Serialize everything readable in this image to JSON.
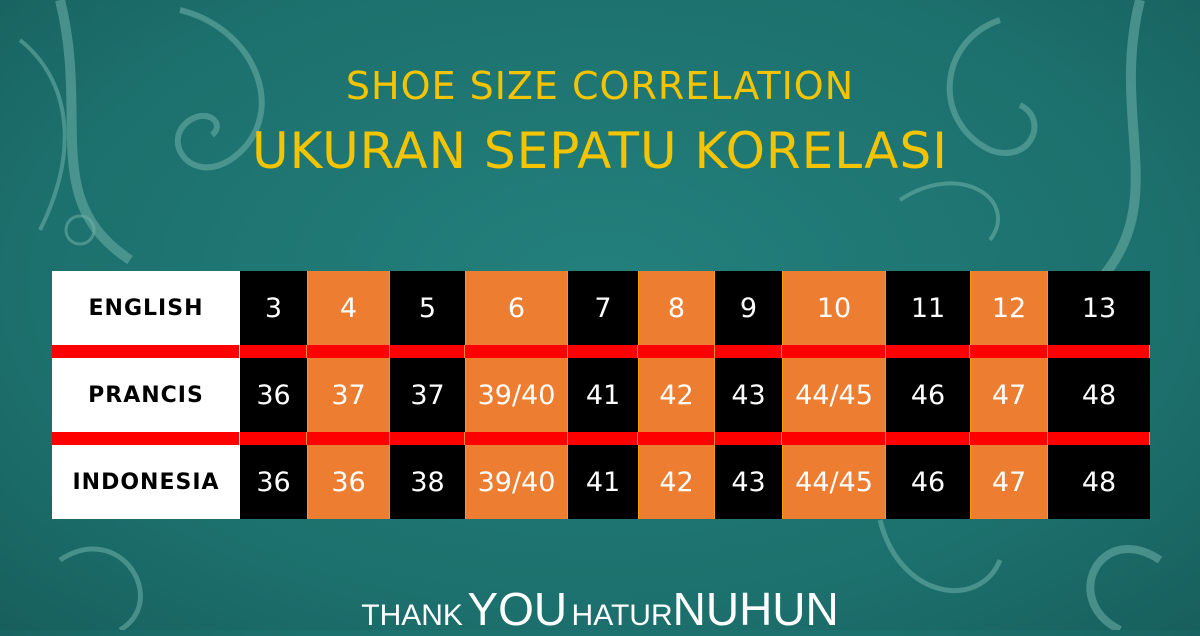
{
  "title_en": "SHOE SIZE CORRELATION",
  "title_id": "UKURAN SEPATU KORELASI",
  "colors": {
    "background": "#1e7572",
    "title": "#f5c400",
    "orange": "#ed7d31",
    "black": "#000000",
    "separator": "#ff0000"
  },
  "table": {
    "rows": [
      {
        "label": "ENGLISH",
        "values": [
          "3",
          "4",
          "5",
          "6",
          "7",
          "8",
          "9",
          "10",
          "11",
          "12",
          "13"
        ]
      },
      {
        "label": "PRANCIS",
        "values": [
          "36",
          "37",
          "37",
          "39/40",
          "41",
          "42",
          "43",
          "44/45",
          "46",
          "47",
          "48"
        ]
      },
      {
        "label": "INDONESIA",
        "values": [
          "36",
          "36",
          "38",
          "39/40",
          "41",
          "42",
          "43",
          "44/45",
          "46",
          "47",
          "48"
        ]
      }
    ]
  },
  "footer": {
    "w1": "THANK",
    "w2": "YOU",
    "w3": "HATUR",
    "w4": "NUHUN"
  }
}
